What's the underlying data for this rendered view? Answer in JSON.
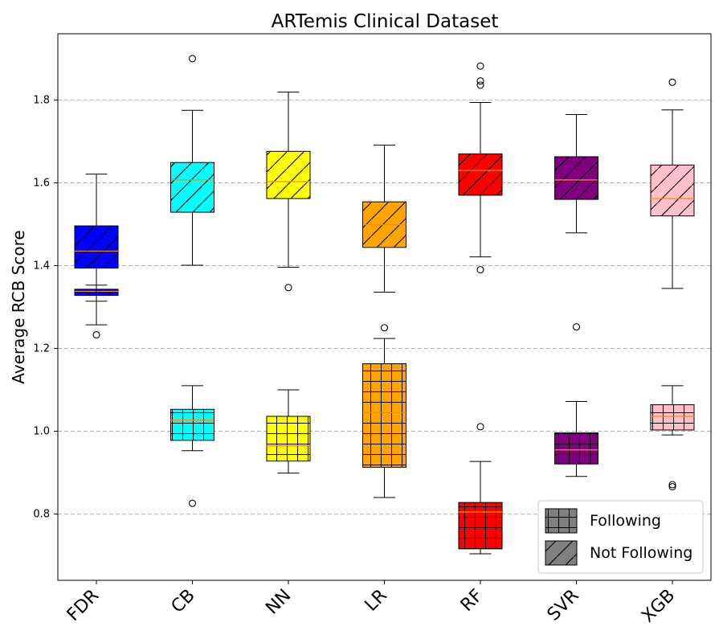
{
  "chart_data": {
    "type": "boxplot",
    "title": "ARTemis Clinical Dataset",
    "ylabel": "Average RCB Score",
    "xlabel": "",
    "categories": [
      "FDR",
      "CB",
      "NN",
      "LR",
      "RF",
      "SVR",
      "XGB"
    ],
    "colors": [
      "#0000ff",
      "#00ffff",
      "#ffff00",
      "#ffa500",
      "#ff0000",
      "#800080",
      "#ffc0cb"
    ],
    "median_color": "#ff8c00",
    "ylim": [
      0.64,
      1.96
    ],
    "yticks": [
      {
        "value": 0.8,
        "label": "0.8"
      },
      {
        "value": 1.0,
        "label": "1.0"
      },
      {
        "value": 1.2,
        "label": "1.2"
      },
      {
        "value": 1.4,
        "label": "1.4"
      },
      {
        "value": 1.6,
        "label": "1.6"
      },
      {
        "value": 1.8,
        "label": "1.8"
      }
    ],
    "grid": "y-dashed",
    "legend": {
      "placement": "lower-right",
      "entries": [
        {
          "label": "Following",
          "hatch": "grid"
        },
        {
          "label": "Not Following",
          "hatch": "diagonal"
        }
      ],
      "swatch_color": "#808080"
    },
    "series": [
      {
        "hatch": "grid",
        "boxes": [
          {
            "category": "FDR",
            "whislo": 1.314,
            "q1": 1.328,
            "med": 1.338,
            "q3": 1.343,
            "whishi": 1.353,
            "fliers": []
          },
          {
            "category": "CB",
            "whislo": 0.953,
            "q1": 0.978,
            "med": 1.027,
            "q3": 1.053,
            "whishi": 1.11,
            "fliers": [
              0.826
            ]
          },
          {
            "category": "NN",
            "whislo": 0.899,
            "q1": 0.928,
            "med": 0.965,
            "q3": 1.036,
            "whishi": 1.1,
            "fliers": []
          },
          {
            "category": "LR",
            "whislo": 0.84,
            "q1": 0.913,
            "med": 1.045,
            "q3": 1.163,
            "whishi": 1.224,
            "fliers": [
              1.25
            ]
          },
          {
            "category": "RF",
            "whislo": 0.704,
            "q1": 0.716,
            "med": 0.805,
            "q3": 0.828,
            "whishi": 0.927,
            "fliers": [
              1.011
            ]
          },
          {
            "category": "SVR",
            "whislo": 0.891,
            "q1": 0.921,
            "med": 0.955,
            "q3": 0.996,
            "whishi": 1.072,
            "fliers": [
              1.252
            ]
          },
          {
            "category": "XGB",
            "whislo": 0.991,
            "q1": 1.003,
            "med": 1.036,
            "q3": 1.064,
            "whishi": 1.11,
            "fliers": [
              0.871,
              0.866
            ]
          }
        ]
      },
      {
        "hatch": "diagonal",
        "boxes": [
          {
            "category": "FDR",
            "whislo": 1.257,
            "q1": 1.394,
            "med": 1.435,
            "q3": 1.496,
            "whishi": 1.621,
            "fliers": [
              1.233
            ]
          },
          {
            "category": "CB",
            "whislo": 1.401,
            "q1": 1.529,
            "med": 1.607,
            "q3": 1.649,
            "whishi": 1.775,
            "fliers": [
              1.9
            ]
          },
          {
            "category": "NN",
            "whislo": 1.396,
            "q1": 1.562,
            "med": 1.603,
            "q3": 1.676,
            "whishi": 1.819,
            "fliers": [
              1.347
            ]
          },
          {
            "category": "LR",
            "whislo": 1.336,
            "q1": 1.444,
            "med": 1.499,
            "q3": 1.554,
            "whishi": 1.691,
            "fliers": []
          },
          {
            "category": "RF",
            "whislo": 1.421,
            "q1": 1.57,
            "med": 1.63,
            "q3": 1.67,
            "whishi": 1.794,
            "fliers": [
              1.39,
              1.836,
              1.846,
              1.882
            ]
          },
          {
            "category": "SVR",
            "whislo": 1.479,
            "q1": 1.56,
            "med": 1.607,
            "q3": 1.663,
            "whishi": 1.765,
            "fliers": []
          },
          {
            "category": "XGB",
            "whislo": 1.345,
            "q1": 1.52,
            "med": 1.562,
            "q3": 1.643,
            "whishi": 1.776,
            "fliers": [
              1.843
            ]
          }
        ]
      }
    ]
  }
}
